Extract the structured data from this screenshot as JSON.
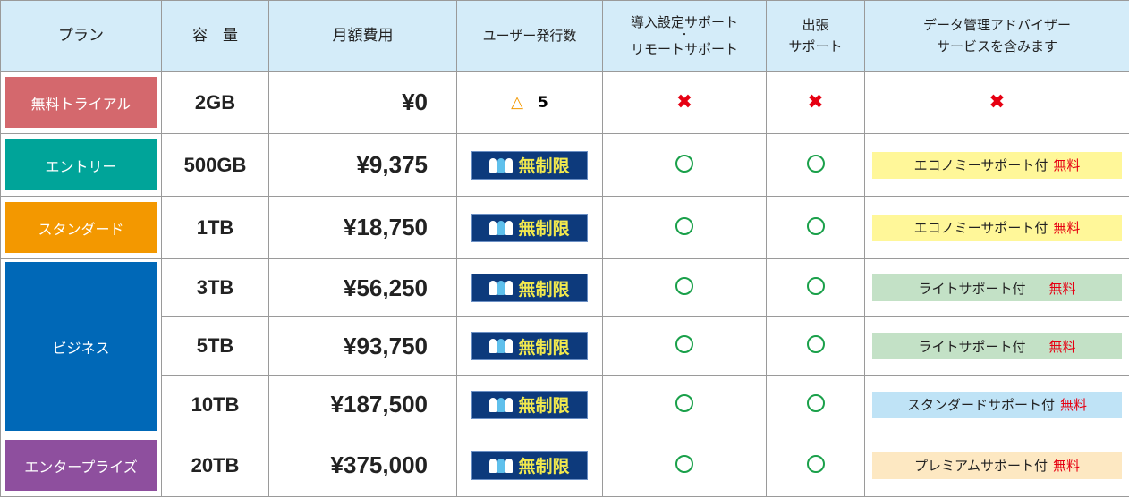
{
  "headers": [
    "プラン",
    "容　量",
    "月額費用",
    "ユーザー発行数",
    "導入設定サポート",
    "・",
    "リモートサポート",
    "出張",
    "サポート",
    "データ管理アドバイザー",
    "サービスを含みます"
  ],
  "colors": {
    "header_bg": "#d4ecf9",
    "trial": "#d4686d",
    "entry": "#00a499",
    "standard": "#f39800",
    "business": "#0068b7",
    "enterprise": "#8e4f9e",
    "yes": "#1aa04a",
    "no": "#e60012"
  },
  "rows": [
    {
      "plan": "無料トライアル",
      "capacity": "2GB",
      "price": "¥0",
      "users": "5",
      "users_icon": "triangle-icon",
      "setup": "no",
      "visit": "no",
      "advisor": "no"
    },
    {
      "plan": "エントリー",
      "capacity": "500GB",
      "price": "¥9,375",
      "users": "無制限",
      "setup": "yes",
      "visit": "yes",
      "advisor": "エコノミーサポート付",
      "advisor_free": "無料",
      "advisor_color": "#fff799"
    },
    {
      "plan": "スタンダード",
      "capacity": "1TB",
      "price": "¥18,750",
      "users": "無制限",
      "setup": "yes",
      "visit": "yes",
      "advisor": "エコノミーサポート付",
      "advisor_free": "無料",
      "advisor_color": "#fff799"
    },
    {
      "plan": "ビジネス",
      "capacity": "3TB",
      "price": "¥56,250",
      "users": "無制限",
      "setup": "yes",
      "visit": "yes",
      "advisor": "ライトサポート付",
      "advisor_free": "無料",
      "advisor_color": "#c3e1c6"
    },
    {
      "capacity": "5TB",
      "price": "¥93,750",
      "users": "無制限",
      "setup": "yes",
      "visit": "yes",
      "advisor": "ライトサポート付",
      "advisor_free": "無料",
      "advisor_color": "#c3e1c6"
    },
    {
      "capacity": "10TB",
      "price": "¥187,500",
      "users": "無制限",
      "setup": "yes",
      "visit": "yes",
      "advisor": "スタンダードサポート付",
      "advisor_free": "無料",
      "advisor_color": "#bfe3f6"
    },
    {
      "plan": "エンタープライズ",
      "capacity": "20TB",
      "price": "¥375,000",
      "users": "無制限",
      "setup": "yes",
      "visit": "yes",
      "advisor": "プレミアムサポート付",
      "advisor_free": "無料",
      "advisor_color": "#fde8c2"
    }
  ],
  "symbols": {
    "yes": "○",
    "no": "✖",
    "triangle": "△"
  }
}
